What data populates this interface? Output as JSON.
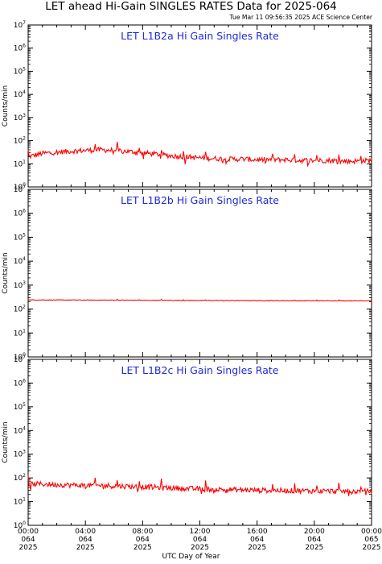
{
  "header": {
    "title": "LET ahead Hi-Gain SINGLES RATES Data for 2025-064",
    "timestamp": "Tue Mar 11 09:56:35 2025 ACE Science Center"
  },
  "xaxis_label": "UTC Day of Year",
  "colors": {
    "series": "#ff0000",
    "panel_title": "#1f2bd6"
  },
  "chart_data": [
    {
      "type": "line",
      "title": "LET L1B2a Hi Gain Singles Rate",
      "ylabel": "Counts/min",
      "yscale": "log",
      "ylim": [
        1,
        10000000
      ],
      "xlim_hours": [
        0,
        24
      ],
      "ytick_exponents": [
        0,
        1,
        2,
        3,
        4,
        5,
        6,
        7
      ],
      "x_hours": [
        0,
        1,
        2,
        3,
        4,
        5,
        6,
        7,
        8,
        9,
        10,
        11,
        12,
        13,
        14,
        15,
        16,
        17,
        18,
        19,
        20,
        21,
        22,
        23,
        24
      ],
      "values": [
        20,
        28,
        32,
        35,
        38,
        40,
        38,
        34,
        30,
        26,
        22,
        20,
        18,
        17,
        16,
        16,
        15,
        15,
        15,
        14,
        14,
        14,
        13,
        13,
        14
      ]
    },
    {
      "type": "line",
      "title": "LET L1B2b Hi Gain Singles Rate",
      "ylabel": "Counts/min",
      "yscale": "log",
      "ylim": [
        1,
        10000000
      ],
      "xlim_hours": [
        0,
        24
      ],
      "ytick_exponents": [
        0,
        1,
        2,
        3,
        4,
        5,
        6,
        7
      ],
      "x_hours": [
        0,
        1,
        2,
        3,
        4,
        5,
        6,
        7,
        8,
        9,
        10,
        11,
        12,
        13,
        14,
        15,
        16,
        17,
        18,
        19,
        20,
        21,
        22,
        23,
        24
      ],
      "values": [
        240,
        240,
        238,
        238,
        236,
        236,
        235,
        234,
        232,
        232,
        230,
        230,
        228,
        228,
        226,
        226,
        225,
        224,
        224,
        223,
        223,
        222,
        222,
        222,
        222
      ]
    },
    {
      "type": "line",
      "title": "LET L1B2c Hi Gain Singles Rate",
      "ylabel": "Counts/min",
      "yscale": "log",
      "ylim": [
        1,
        10000000
      ],
      "xlim_hours": [
        0,
        24
      ],
      "ytick_exponents": [
        0,
        1,
        2,
        3,
        4,
        5,
        6,
        7
      ],
      "x_hours": [
        0,
        1,
        2,
        3,
        4,
        5,
        6,
        7,
        8,
        9,
        10,
        11,
        12,
        13,
        14,
        15,
        16,
        17,
        18,
        19,
        20,
        21,
        22,
        23,
        24
      ],
      "values": [
        55,
        55,
        52,
        50,
        48,
        48,
        46,
        44,
        42,
        40,
        38,
        36,
        34,
        33,
        32,
        31,
        30,
        30,
        29,
        29,
        28,
        28,
        27,
        27,
        27
      ]
    }
  ],
  "x_tick_labels": [
    {
      "hour": 0,
      "lines": [
        "00:00",
        "064",
        "2025"
      ]
    },
    {
      "hour": 4,
      "lines": [
        "04:00",
        "064",
        "2025"
      ]
    },
    {
      "hour": 8,
      "lines": [
        "08:00",
        "064",
        "2025"
      ]
    },
    {
      "hour": 12,
      "lines": [
        "12:00",
        "064",
        "2025"
      ]
    },
    {
      "hour": 16,
      "lines": [
        "16:00",
        "064",
        "2025"
      ]
    },
    {
      "hour": 20,
      "lines": [
        "20:00",
        "064",
        "2025"
      ]
    },
    {
      "hour": 24,
      "lines": [
        "00:00",
        "065",
        "2025"
      ]
    }
  ]
}
